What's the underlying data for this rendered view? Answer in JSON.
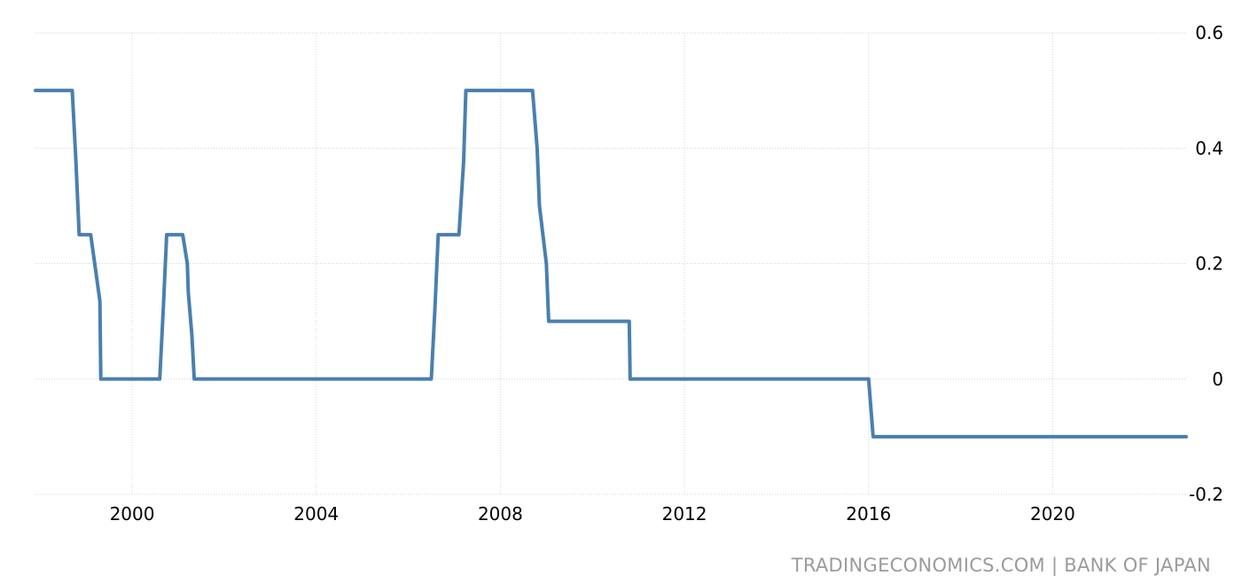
{
  "source": "TRADINGECONOMICS.COM | BANK OF JAPAN",
  "colors": {
    "line": "#4a7fb0",
    "grid": "#d4d4d4",
    "source_text": "#9b9b9b"
  },
  "chart_data": {
    "type": "line",
    "title": "",
    "xlabel": "",
    "ylabel": "",
    "x_ticks": [
      "2000",
      "2004",
      "2008",
      "2012",
      "2016",
      "2020"
    ],
    "x_tick_values": [
      2000,
      2004,
      2008,
      2012,
      2016,
      2020
    ],
    "y_ticks": [
      "0.6",
      "0.4",
      "0.2",
      "0",
      "-0.2"
    ],
    "y_tick_values": [
      0.6,
      0.4,
      0.2,
      0,
      -0.2
    ],
    "xlim": [
      1997.9,
      2022.9
    ],
    "ylim": [
      -0.2,
      0.6
    ],
    "grid": true,
    "y_axis_side": "right",
    "series": [
      {
        "x": [
          1997.9,
          1998.7,
          1998.78,
          1998.85,
          1999.1,
          1999.3,
          1999.32,
          2000.6,
          2000.68,
          2000.75,
          2001.1,
          2001.2,
          2001.22,
          2001.3,
          2001.35,
          2006.5,
          2006.58,
          2006.65,
          2007.1,
          2007.2,
          2007.25,
          2008.7,
          2008.8,
          2008.85,
          2009.0,
          2009.05,
          2010.8,
          2010.82,
          2016.0,
          2016.1,
          2022.9
        ],
        "y": [
          0.5,
          0.5,
          0.375,
          0.25,
          0.25,
          0.135,
          0.0,
          0.0,
          0.125,
          0.25,
          0.25,
          0.2,
          0.15,
          0.075,
          0.0,
          0.0,
          0.125,
          0.25,
          0.25,
          0.375,
          0.5,
          0.5,
          0.4,
          0.3,
          0.2,
          0.1,
          0.1,
          0.0,
          0.0,
          -0.1,
          -0.1
        ]
      }
    ]
  }
}
